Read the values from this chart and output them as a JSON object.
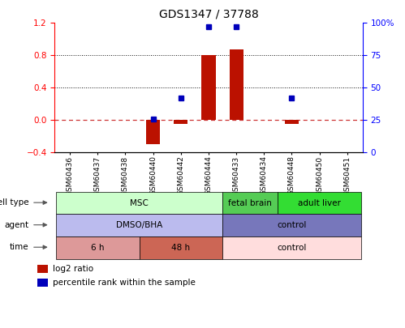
{
  "title": "GDS1347 / 37788",
  "samples": [
    "GSM60436",
    "GSM60437",
    "GSM60438",
    "GSM60440",
    "GSM60442",
    "GSM60444",
    "GSM60433",
    "GSM60434",
    "GSM60448",
    "GSM60450",
    "GSM60451"
  ],
  "log2_ratio": [
    0,
    0,
    0,
    -0.3,
    -0.05,
    0.8,
    0.87,
    0,
    -0.05,
    0,
    0
  ],
  "percentile_rank": [
    null,
    null,
    null,
    0.26,
    0.42,
    0.97,
    0.97,
    null,
    0.42,
    null,
    null
  ],
  "ylim_left": [
    -0.4,
    1.2
  ],
  "ylim_right": [
    0,
    100
  ],
  "yticks_left": [
    -0.4,
    0,
    0.4,
    0.8,
    1.2
  ],
  "yticks_right": [
    0,
    25,
    50,
    75,
    100
  ],
  "hlines_dotted": [
    0.8,
    0.4
  ],
  "cell_type_groups": [
    {
      "label": "MSC",
      "start": 0,
      "end": 5,
      "color": "#ccffcc"
    },
    {
      "label": "fetal brain",
      "start": 6,
      "end": 7,
      "color": "#55cc55"
    },
    {
      "label": "adult liver",
      "start": 8,
      "end": 10,
      "color": "#33dd33"
    }
  ],
  "agent_groups": [
    {
      "label": "DMSO/BHA",
      "start": 0,
      "end": 5,
      "color": "#bbbbee"
    },
    {
      "label": "control",
      "start": 6,
      "end": 10,
      "color": "#7777bb"
    }
  ],
  "time_groups": [
    {
      "label": "6 h",
      "start": 0,
      "end": 2,
      "color": "#dd9999"
    },
    {
      "label": "48 h",
      "start": 3,
      "end": 5,
      "color": "#cc6655"
    },
    {
      "label": "control",
      "start": 6,
      "end": 10,
      "color": "#ffdddd"
    }
  ],
  "row_labels": [
    "cell type",
    "agent",
    "time"
  ],
  "bar_color": "#bb1100",
  "dot_color": "#0000bb",
  "zero_line_color": "#cc3333",
  "grid_line_color": "#111111",
  "bar_width": 0.5,
  "legend_red_label": "log2 ratio",
  "legend_blue_label": "percentile rank within the sample"
}
